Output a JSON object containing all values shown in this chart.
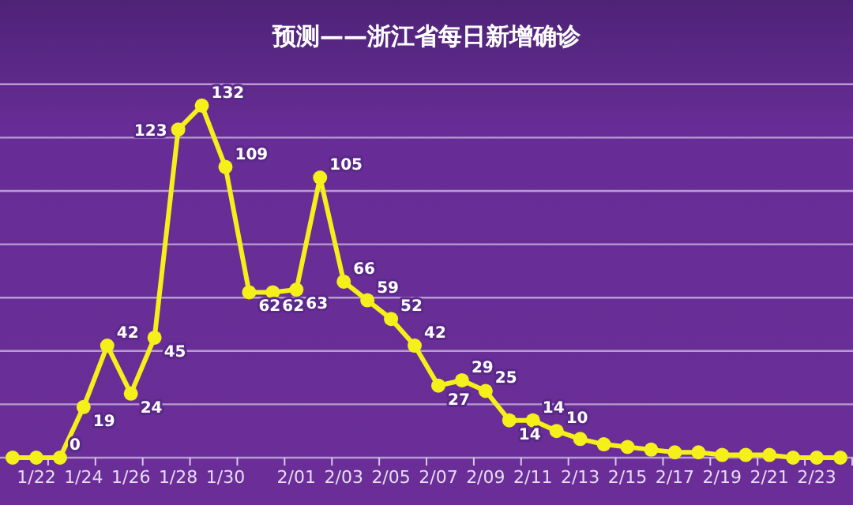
{
  "chart_data": {
    "type": "line",
    "title": "预测——浙江省每日新增确诊",
    "categories": [
      null,
      "1/22",
      null,
      "1/24",
      null,
      "1/26",
      null,
      "1/28",
      null,
      "1/30",
      null,
      null,
      "2/01",
      null,
      "2/03",
      null,
      "2/05",
      null,
      "2/07",
      null,
      "2/09",
      null,
      "2/11",
      null,
      "2/13",
      null,
      "2/15",
      null,
      "2/17",
      null,
      "2/19",
      null,
      "2/21",
      null,
      "2/23",
      null
    ],
    "series": [
      {
        "color": "#f5ef1a",
        "values": [
          0,
          0,
          0,
          19,
          42,
          24,
          45,
          123,
          132,
          109,
          62,
          62,
          63,
          105,
          66,
          59,
          52,
          42,
          27,
          29,
          25,
          14,
          14,
          10,
          7,
          5,
          4,
          3,
          2,
          2,
          1,
          1,
          1,
          0,
          0,
          0
        ],
        "value_labels": [
          null,
          null,
          "0",
          "19",
          "42",
          "24",
          "45",
          "123",
          "132",
          "109",
          "62",
          "62",
          "63",
          "105",
          "66",
          "59",
          "52",
          "42",
          "27",
          "29",
          "25",
          "14",
          "14",
          "10",
          null,
          null,
          null,
          null,
          null,
          null,
          null,
          null,
          null,
          null,
          null,
          null
        ]
      }
    ],
    "ylim": [
      0,
      142
    ],
    "yticks": [
      {
        "value": 0,
        "label": null
      },
      {
        "value": 20,
        "label": null
      },
      {
        "value": 40,
        "label": null
      },
      {
        "value": 60,
        "label": null
      },
      {
        "value": 80,
        "label": null
      },
      {
        "value": 100,
        "label": null
      },
      {
        "value": 120,
        "label": null
      },
      {
        "value": 140,
        "label": null
      }
    ],
    "tick_labels": "x",
    "grid": "y",
    "marker": "circle",
    "line_style": "solid"
  }
}
